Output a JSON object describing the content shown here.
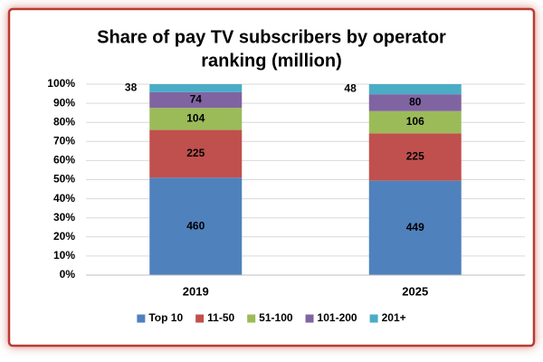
{
  "chart_data": {
    "type": "stacked_bar_percent",
    "title": [
      "Share of pay TV subscribers by operator",
      "ranking (million)"
    ],
    "categories": [
      "2019",
      "2025"
    ],
    "series": [
      {
        "name": "Top 10",
        "color": "#4f81bd",
        "values": [
          460,
          449
        ]
      },
      {
        "name": "11-50",
        "color": "#c0504d",
        "values": [
          225,
          225
        ]
      },
      {
        "name": "51-100",
        "color": "#9bbb59",
        "values": [
          104,
          106
        ]
      },
      {
        "name": "101-200",
        "color": "#8064a2",
        "values": [
          74,
          80
        ]
      },
      {
        "name": "201+",
        "color": "#4bacc6",
        "values": [
          38,
          48
        ]
      }
    ],
    "ylim": [
      0,
      100
    ],
    "yticks": [
      {
        "value": 0,
        "label": "0%"
      },
      {
        "value": 10,
        "label": "10%"
      },
      {
        "value": 20,
        "label": "20%"
      },
      {
        "value": 30,
        "label": "30%"
      },
      {
        "value": 40,
        "label": "40%"
      },
      {
        "value": 50,
        "label": "50%"
      },
      {
        "value": 60,
        "label": "60%"
      },
      {
        "value": 70,
        "label": "70%"
      },
      {
        "value": 80,
        "label": "80%"
      },
      {
        "value": 90,
        "label": "90%"
      },
      {
        "value": 100,
        "label": "100%"
      }
    ],
    "grid": true,
    "legend": "bottom"
  }
}
